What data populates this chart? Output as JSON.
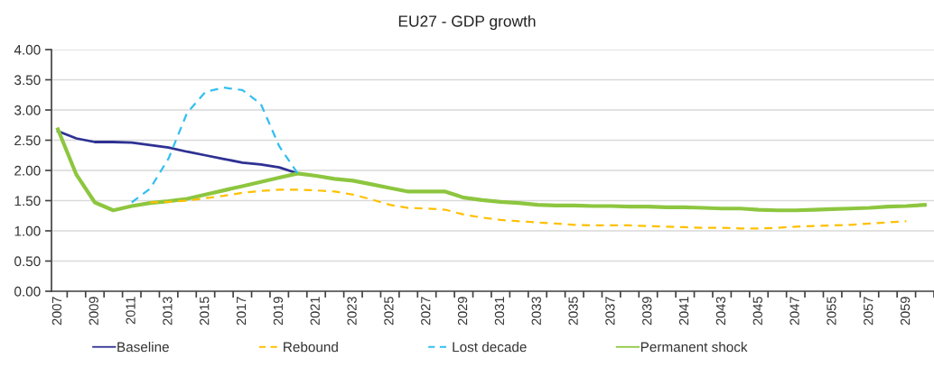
{
  "chart_data": {
    "type": "line",
    "title": "EU27 - GDP growth",
    "categories": [
      "2007",
      null,
      "2009",
      null,
      "2011",
      null,
      "2013",
      null,
      "2015",
      null,
      "2017",
      null,
      "2019",
      null,
      "2021",
      null,
      "2023",
      null,
      "2025",
      null,
      "2027",
      null,
      "2029",
      null,
      "2031",
      null,
      "2033",
      null,
      "2035",
      null,
      "2037",
      null,
      "2039",
      null,
      "2041",
      null,
      "2043",
      null,
      "2045",
      null,
      "2047",
      null,
      "2055",
      null,
      "2057",
      null,
      "2059",
      null
    ],
    "series": [
      {
        "name": "Baseline",
        "color": "#2e3192",
        "line_style": "solid",
        "values": [
          2.65,
          2.53,
          2.47,
          2.47,
          2.46,
          2.42,
          2.38,
          2.31,
          2.25,
          2.19,
          2.13,
          2.1,
          2.05,
          1.95,
          null,
          null,
          null,
          null,
          null,
          null,
          null,
          null,
          null,
          null,
          null,
          null,
          null,
          null,
          null,
          null,
          null,
          null,
          null,
          null,
          null,
          null,
          null,
          null,
          null,
          null,
          null,
          null,
          null,
          null,
          null,
          null,
          null,
          null
        ]
      },
      {
        "name": "Rebound",
        "color": "#ffc000",
        "line_style": "dashed",
        "values": [
          null,
          null,
          null,
          null,
          null,
          1.47,
          1.48,
          1.5,
          1.54,
          1.58,
          1.63,
          1.66,
          1.68,
          1.68,
          1.67,
          1.65,
          1.6,
          1.52,
          1.43,
          1.38,
          1.37,
          1.35,
          1.27,
          1.22,
          1.18,
          1.16,
          1.14,
          1.12,
          1.1,
          1.09,
          1.09,
          1.09,
          1.08,
          1.07,
          1.06,
          1.05,
          1.05,
          1.04,
          1.04,
          1.05,
          1.07,
          1.08,
          1.09,
          1.1,
          1.12,
          1.14,
          1.16,
          null
        ]
      },
      {
        "name": "Lost decade",
        "color": "#33bff0",
        "line_style": "dashed",
        "values": [
          null,
          null,
          null,
          null,
          1.47,
          1.7,
          2.2,
          2.95,
          3.3,
          3.37,
          3.33,
          3.1,
          2.4,
          1.95,
          null,
          null,
          null,
          null,
          null,
          null,
          null,
          null,
          null,
          null,
          null,
          null,
          null,
          null,
          null,
          null,
          null,
          null,
          null,
          null,
          null,
          null,
          null,
          null,
          null,
          null,
          null,
          null,
          null,
          null,
          null,
          null,
          null,
          null
        ]
      },
      {
        "name": "Permanent shock",
        "color": "#8dc63f",
        "line_style": "solid",
        "values": [
          2.68,
          1.93,
          1.47,
          1.34,
          1.41,
          1.46,
          1.49,
          1.53,
          1.6,
          1.67,
          1.74,
          1.81,
          1.88,
          1.95,
          1.91,
          1.86,
          1.83,
          1.77,
          1.71,
          1.65,
          1.65,
          1.65,
          1.55,
          1.51,
          1.48,
          1.46,
          1.43,
          1.42,
          1.42,
          1.41,
          1.41,
          1.4,
          1.4,
          1.39,
          1.39,
          1.38,
          1.37,
          1.37,
          1.35,
          1.34,
          1.34,
          1.35,
          1.36,
          1.37,
          1.38,
          1.4,
          1.41,
          1.43
        ]
      }
    ],
    "ylim": [
      0,
      4
    ],
    "yticks": [
      {
        "value": 0,
        "label": "0.00"
      },
      {
        "value": 0.5,
        "label": "0.50"
      },
      {
        "value": 1,
        "label": "1.00"
      },
      {
        "value": 1.5,
        "label": "1.50"
      },
      {
        "value": 2,
        "label": "2.00"
      },
      {
        "value": 2.5,
        "label": "2.50"
      },
      {
        "value": 3,
        "label": "3.00"
      },
      {
        "value": 3.5,
        "label": "3.50"
      },
      {
        "value": 4,
        "label": "4.00"
      }
    ],
    "grid": "y",
    "legend": "bottom"
  }
}
